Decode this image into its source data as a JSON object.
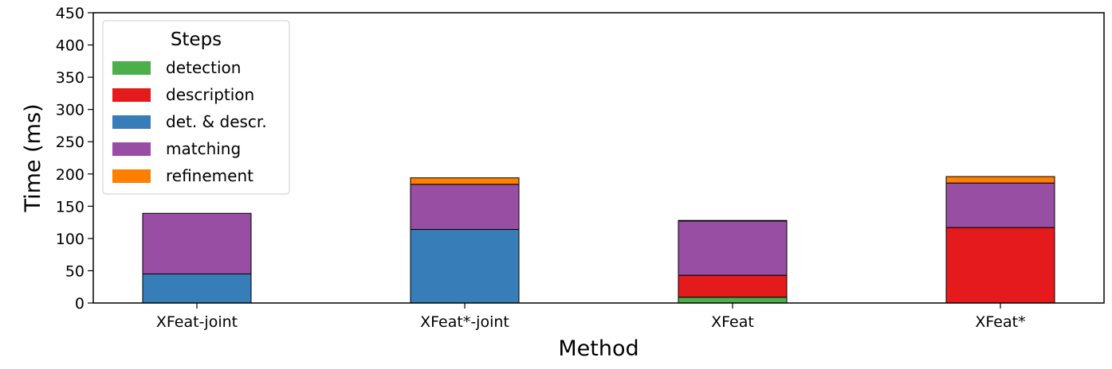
{
  "chart_data": {
    "type": "bar",
    "stacked": true,
    "title": "",
    "xlabel": "Method",
    "ylabel": "Time (ms)",
    "ylim": [
      0,
      450
    ],
    "yticks": [
      0,
      50,
      100,
      150,
      200,
      250,
      300,
      350,
      400,
      450
    ],
    "categories": [
      "XFeat-joint",
      "XFeat*-joint",
      "XFeat",
      "XFeat*"
    ],
    "grid": false,
    "legend": {
      "title": "Steps",
      "placement": "top-left"
    },
    "series": [
      {
        "name": "detection",
        "color": "#4daf4a",
        "values": [
          0,
          0,
          9,
          0
        ]
      },
      {
        "name": "description",
        "color": "#e41a1c",
        "values": [
          0,
          0,
          34,
          117
        ]
      },
      {
        "name": "det. & descr.",
        "color": "#377eb8",
        "values": [
          45,
          114,
          0,
          0
        ]
      },
      {
        "name": "matching",
        "color": "#984ea3",
        "values": [
          94,
          70,
          84,
          69
        ]
      },
      {
        "name": "refinement",
        "color": "#ff7f00",
        "values": [
          0,
          10,
          1,
          10
        ]
      }
    ]
  }
}
